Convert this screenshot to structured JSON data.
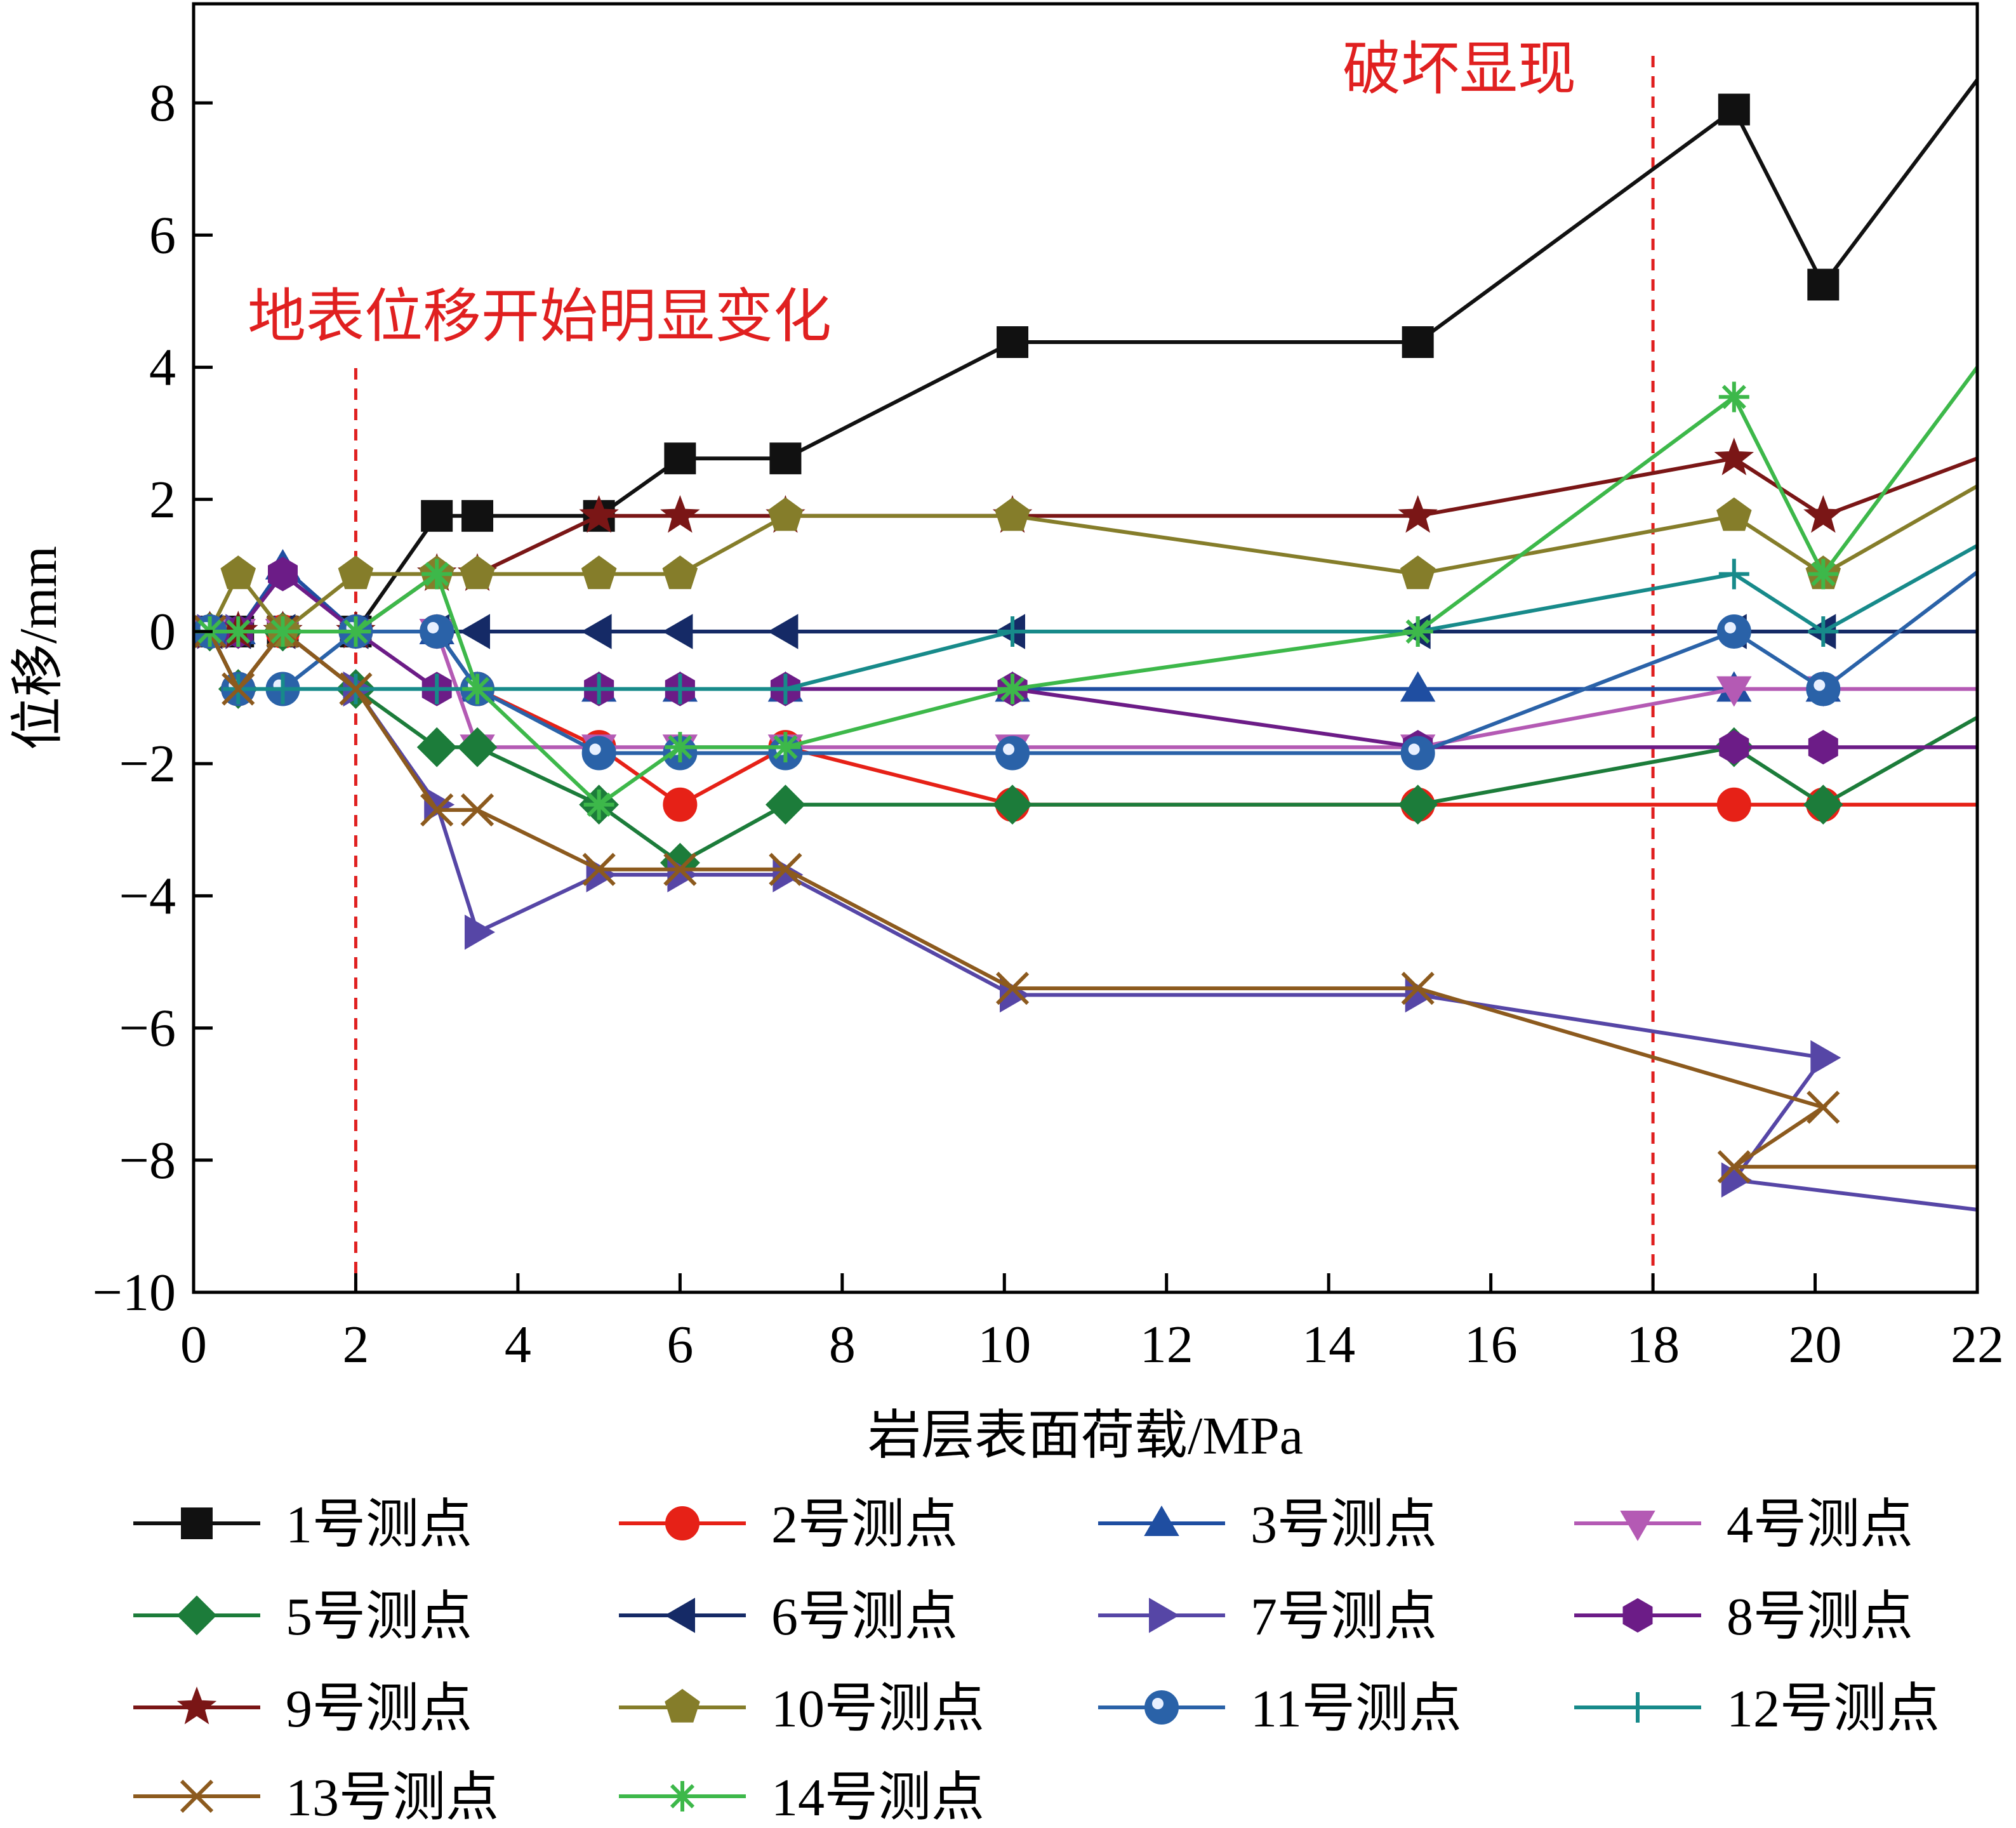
{
  "chart_data": {
    "type": "line",
    "xlabel": "岩层表面荷载/MPa",
    "ylabel": "位移/mm",
    "xlim": [
      0,
      22
    ],
    "ylim": [
      -10,
      9.5
    ],
    "xticks": [
      0,
      2,
      4,
      6,
      8,
      10,
      12,
      14,
      16,
      18,
      20,
      22
    ],
    "yticks": [
      -10,
      -8,
      -6,
      -4,
      -2,
      0,
      2,
      4,
      6,
      8
    ],
    "grid": false,
    "legend_position": "bottom",
    "annotations": [
      {
        "text": "地表位移开始明显变化",
        "x": 2,
        "color": "#e02020"
      },
      {
        "text": "破坏显现",
        "x": 18,
        "color": "#e02020"
      }
    ],
    "series": [
      {
        "name": "1号测点",
        "color": "#111111",
        "marker": "square",
        "x": [
          0.2,
          0.55,
          1.1,
          2,
          3,
          3.5,
          5,
          6,
          7.3,
          10.1,
          15.1,
          19,
          20.1,
          22
        ],
        "y": [
          0,
          0,
          0,
          0,
          1.75,
          1.75,
          1.75,
          2.62,
          2.62,
          4.38,
          4.38,
          7.9,
          5.25,
          8.35
        ]
      },
      {
        "name": "2号测点",
        "color": "#e62117",
        "marker": "circle",
        "x": [
          0.2,
          0.55,
          1.1,
          2,
          3,
          3.5,
          5,
          6,
          7.3,
          10.1,
          15.1,
          19,
          20.1,
          22
        ],
        "y": [
          0,
          -0.87,
          0,
          0,
          0,
          -0.87,
          -1.75,
          -2.62,
          -1.75,
          -2.62,
          -2.62,
          -2.62,
          -2.62,
          -2.62
        ]
      },
      {
        "name": "3号测点",
        "color": "#1f4ea1",
        "marker": "triangle-up",
        "x": [
          0.2,
          0.55,
          1.1,
          2,
          3,
          3.5,
          5,
          6,
          7.3,
          10.1,
          15.1,
          19,
          20.1,
          22
        ],
        "y": [
          0,
          0,
          0.98,
          0,
          0,
          -0.87,
          -0.87,
          -0.87,
          -0.87,
          -0.87,
          -0.87,
          -0.87,
          -0.87,
          -0.87
        ]
      },
      {
        "name": "4号测点",
        "color": "#b45ab4",
        "marker": "triangle-down",
        "x": [
          0.2,
          0.55,
          1.1,
          2,
          3,
          3.5,
          5,
          6,
          7.3,
          10.1,
          15.1,
          19,
          20.1,
          22
        ],
        "y": [
          0,
          0,
          0,
          0,
          0,
          -1.75,
          -1.75,
          -1.75,
          -1.75,
          -1.75,
          -1.75,
          -0.87,
          -0.87,
          -0.87
        ]
      },
      {
        "name": "5号测点",
        "color": "#1c7c3a",
        "marker": "diamond",
        "x": [
          0.2,
          0.55,
          1.1,
          2,
          3,
          3.5,
          5,
          6,
          7.3,
          10.1,
          15.1,
          19,
          20.1,
          22
        ],
        "y": [
          0,
          -0.87,
          0,
          -0.87,
          -1.75,
          -1.75,
          -2.62,
          -3.5,
          -2.62,
          -2.62,
          -2.62,
          -1.75,
          -2.62,
          -1.3
        ]
      },
      {
        "name": "6号测点",
        "color": "#152a66",
        "marker": "triangle-left",
        "x": [
          0.2,
          0.55,
          1.1,
          2,
          3,
          3.5,
          5,
          6,
          7.3,
          10.1,
          15.1,
          19,
          20.1,
          22
        ],
        "y": [
          0,
          0,
          0,
          0,
          0,
          0,
          0,
          0,
          0,
          0,
          0,
          0,
          0,
          0
        ]
      },
      {
        "name": "7号测点",
        "color": "#5646a6",
        "marker": "triangle-right",
        "x": [
          0.2,
          0.55,
          1.1,
          2,
          3,
          3.5,
          5,
          6,
          7.3,
          10.1,
          15.1,
          20.1,
          19,
          22
        ],
        "y": [
          0,
          0,
          0,
          -0.87,
          -2.62,
          -4.55,
          -3.68,
          -3.68,
          -3.68,
          -5.5,
          -5.5,
          -6.45,
          -8.3,
          -8.75
        ]
      },
      {
        "name": "8号测点",
        "color": "#6c1c87",
        "marker": "hexagon",
        "x": [
          0.2,
          0.55,
          1.1,
          2,
          3,
          3.5,
          5,
          6,
          7.3,
          10.1,
          15.1,
          19,
          20.1,
          22
        ],
        "y": [
          0,
          0,
          0.87,
          0,
          -0.87,
          -0.87,
          -0.87,
          -0.87,
          -0.87,
          -0.87,
          -1.75,
          -1.75,
          -1.75,
          -1.75
        ]
      },
      {
        "name": "9号测点",
        "color": "#7a1616",
        "marker": "star",
        "x": [
          0.2,
          0.55,
          1.1,
          2,
          3,
          3.5,
          5,
          6,
          7.3,
          10.1,
          15.1,
          19,
          20.1,
          22
        ],
        "y": [
          0,
          0,
          0,
          0,
          0.87,
          0.87,
          1.75,
          1.75,
          1.75,
          1.75,
          1.75,
          2.62,
          1.75,
          2.62
        ]
      },
      {
        "name": "10号测点",
        "color": "#857d2a",
        "marker": "pentagon",
        "x": [
          0.2,
          0.55,
          1.1,
          2,
          3,
          3.5,
          5,
          6,
          7.3,
          10.1,
          15.1,
          19,
          20.1,
          22
        ],
        "y": [
          0,
          0.87,
          0,
          0.87,
          0.87,
          0.87,
          0.87,
          0.87,
          1.75,
          1.75,
          0.87,
          1.75,
          0.87,
          2.2
        ]
      },
      {
        "name": "11号测点",
        "color": "#2a62a8",
        "marker": "ball",
        "x": [
          0.2,
          0.55,
          1.1,
          2,
          3,
          3.5,
          5,
          6,
          7.3,
          10.1,
          15.1,
          19,
          20.1,
          22
        ],
        "y": [
          0,
          -0.87,
          -0.87,
          0,
          0,
          -0.87,
          -1.84,
          -1.84,
          -1.84,
          -1.84,
          -1.84,
          0,
          -0.87,
          0.9
        ]
      },
      {
        "name": "12号测点",
        "color": "#178a8a",
        "marker": "plus",
        "x": [
          0.2,
          0.55,
          1.1,
          2,
          3,
          3.5,
          5,
          6,
          7.3,
          10.1,
          15.1,
          19,
          20.1,
          22
        ],
        "y": [
          0,
          -0.87,
          -0.87,
          -0.87,
          -0.87,
          -0.87,
          -0.87,
          -0.87,
          -0.87,
          0,
          0,
          0.87,
          0,
          1.3
        ]
      },
      {
        "name": "13号测点",
        "color": "#8c5a1e",
        "marker": "x",
        "x": [
          0.2,
          0.55,
          1.1,
          2,
          3,
          3.5,
          5,
          6,
          7.3,
          10.1,
          15.1,
          20.1,
          19,
          22
        ],
        "y": [
          0,
          -0.87,
          0,
          -0.87,
          -2.7,
          -2.7,
          -3.6,
          -3.6,
          -3.6,
          -5.4,
          -5.4,
          -7.2,
          -8.1,
          -8.1
        ]
      },
      {
        "name": "14号测点",
        "color": "#3db84a",
        "marker": "asterisk",
        "x": [
          0.2,
          0.55,
          1.1,
          2,
          3,
          3.5,
          5,
          6,
          7.3,
          10.1,
          15.1,
          19,
          20.1,
          22
        ],
        "y": [
          0,
          0,
          0,
          0,
          0.87,
          -0.87,
          -2.62,
          -1.75,
          -1.75,
          -0.87,
          0,
          3.55,
          0.87,
          4
        ]
      }
    ]
  }
}
